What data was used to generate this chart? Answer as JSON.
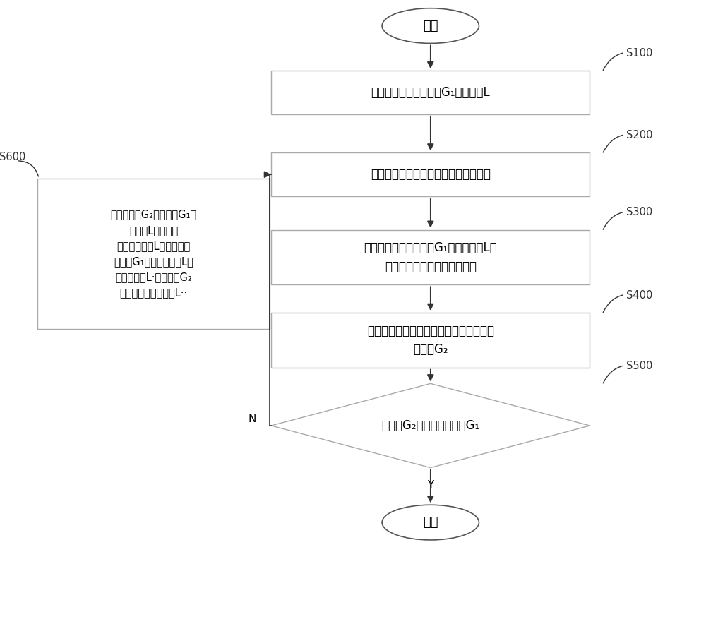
{
  "bg_color": "#ffffff",
  "border_color": "#aaaaaa",
  "line_color": "#333333",
  "arrow_color": "#333333",
  "text_color": "#000000",
  "start_end_border": "#555555",
  "label_color": "#333333",
  "s100_text": "获取所投物料的预设值G₁、落差值L",
  "s200_text": "发出指令控制精称阀门启动，开始投料",
  "s300_text": "当所投物料等于预设值G₁减去落差值L时\n，发出指令控制精称阀门关闭",
  "s400_text": "当精称阀门完全关闭时，称量所投物料的\n实际值G₂",
  "s500_text": "实际值G₂是否等于预设值G₁",
  "s600_text": "根据实际值G₂、预设值G₁和\n落差值L确定实际\n的当前落差值L，，并根据\n预设值G₁、在前落差值L、\n当前落差值L·和实际值G₂\n，更新在后的落差值L··",
  "start_text": "开始",
  "end_text": "结束",
  "yes_label": "Y",
  "no_label": "N",
  "s100_label": "S100",
  "s200_label": "S200",
  "s300_label": "S300",
  "s400_label": "S400",
  "s500_label": "S500",
  "s600_label": "S600"
}
